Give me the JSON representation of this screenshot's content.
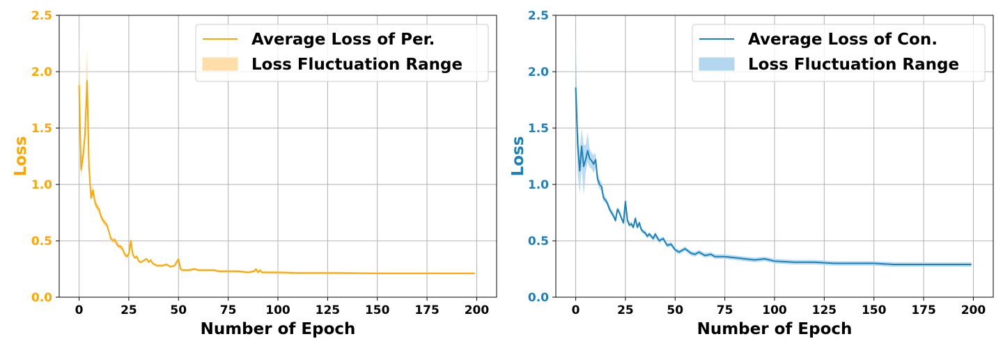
{
  "chart_data": [
    {
      "type": "line",
      "color": "#ffa500",
      "fill_color": "#ffdeaa",
      "xlabel": "Number of Epoch",
      "ylabel": "Loss",
      "xlim": [
        -10,
        210
      ],
      "ylim": [
        0,
        2.5
      ],
      "xticks": [
        "0",
        "25",
        "50",
        "75",
        "100",
        "125",
        "150",
        "175",
        "200"
      ],
      "yticks": [
        "0.0",
        "0.5",
        "1.0",
        "1.5",
        "2.0",
        "2.5"
      ],
      "grid": true,
      "legend_position": "top-right",
      "legend": {
        "line_label": "Average Loss of Per.",
        "band_label": "Loss Fluctuation Range"
      },
      "series": [
        {
          "name": "Average Loss of Per.",
          "x": [
            0,
            1,
            2,
            3,
            4,
            5,
            6,
            7,
            8,
            9,
            10,
            11,
            12,
            13,
            14,
            15,
            16,
            17,
            18,
            19,
            20,
            21,
            22,
            23,
            24,
            25,
            26,
            27,
            28,
            29,
            30,
            31,
            32,
            33,
            34,
            35,
            36,
            37,
            38,
            39,
            40,
            42,
            44,
            46,
            48,
            50,
            51,
            52,
            55,
            58,
            60,
            62,
            65,
            68,
            70,
            75,
            80,
            85,
            88,
            89,
            90,
            91,
            92,
            95,
            98,
            100,
            110,
            120,
            130,
            140,
            150,
            160,
            170,
            180,
            190,
            199
          ],
          "y": [
            1.88,
            1.13,
            1.25,
            1.45,
            1.92,
            1.15,
            0.88,
            0.95,
            0.84,
            0.8,
            0.78,
            0.72,
            0.68,
            0.66,
            0.64,
            0.58,
            0.52,
            0.5,
            0.51,
            0.47,
            0.45,
            0.45,
            0.42,
            0.38,
            0.36,
            0.38,
            0.5,
            0.38,
            0.35,
            0.36,
            0.32,
            0.31,
            0.32,
            0.33,
            0.34,
            0.31,
            0.33,
            0.3,
            0.29,
            0.28,
            0.28,
            0.28,
            0.29,
            0.27,
            0.28,
            0.34,
            0.25,
            0.24,
            0.24,
            0.25,
            0.24,
            0.24,
            0.24,
            0.24,
            0.23,
            0.23,
            0.23,
            0.22,
            0.23,
            0.25,
            0.22,
            0.24,
            0.22,
            0.22,
            0.22,
            0.22,
            0.215,
            0.215,
            0.215,
            0.213,
            0.212,
            0.212,
            0.212,
            0.212,
            0.212,
            0.212
          ],
          "band_lower": [
            1.84,
            1.05,
            1.2,
            1.38,
            1.7,
            1.08,
            0.85,
            0.9,
            0.81,
            0.77,
            0.75,
            0.69,
            0.66,
            0.63,
            0.62,
            0.56,
            0.5,
            0.48,
            0.49,
            0.45,
            0.43,
            0.43,
            0.4,
            0.36,
            0.35,
            0.36,
            0.46,
            0.36,
            0.34,
            0.34,
            0.31,
            0.3,
            0.31,
            0.32,
            0.33,
            0.3,
            0.32,
            0.29,
            0.28,
            0.27,
            0.27,
            0.27,
            0.28,
            0.26,
            0.27,
            0.31,
            0.24,
            0.23,
            0.23,
            0.24,
            0.23,
            0.23,
            0.23,
            0.23,
            0.22,
            0.22,
            0.22,
            0.21,
            0.22,
            0.23,
            0.21,
            0.23,
            0.21,
            0.21,
            0.21,
            0.21,
            0.205,
            0.205,
            0.205,
            0.205,
            0.204,
            0.204,
            0.204,
            0.204,
            0.204,
            0.204
          ],
          "band_upper": [
            2.35,
            1.22,
            1.3,
            1.6,
            2.22,
            1.24,
            0.92,
            1.0,
            0.88,
            0.83,
            0.81,
            0.75,
            0.7,
            0.69,
            0.66,
            0.6,
            0.54,
            0.52,
            0.53,
            0.49,
            0.47,
            0.47,
            0.44,
            0.4,
            0.38,
            0.4,
            0.53,
            0.4,
            0.36,
            0.38,
            0.33,
            0.32,
            0.33,
            0.34,
            0.35,
            0.32,
            0.34,
            0.31,
            0.3,
            0.29,
            0.29,
            0.29,
            0.3,
            0.28,
            0.29,
            0.36,
            0.26,
            0.25,
            0.25,
            0.26,
            0.25,
            0.25,
            0.25,
            0.25,
            0.24,
            0.24,
            0.24,
            0.23,
            0.24,
            0.26,
            0.23,
            0.25,
            0.23,
            0.23,
            0.23,
            0.23,
            0.225,
            0.225,
            0.225,
            0.221,
            0.22,
            0.22,
            0.22,
            0.22,
            0.22,
            0.22
          ]
        }
      ]
    },
    {
      "type": "line",
      "color": "#1a80bb",
      "fill_color": "#b3d7ee",
      "xlabel": "Number of Epoch",
      "ylabel": "Loss",
      "xlim": [
        -10,
        210
      ],
      "ylim": [
        0,
        2.5
      ],
      "xticks": [
        "0",
        "25",
        "50",
        "75",
        "100",
        "125",
        "150",
        "175",
        "200"
      ],
      "yticks": [
        "0.0",
        "0.5",
        "1.0",
        "1.5",
        "2.0",
        "2.5"
      ],
      "grid": true,
      "legend_position": "top-right",
      "legend": {
        "line_label": "Average Loss of Con.",
        "band_label": "Loss Fluctuation Range"
      },
      "series": [
        {
          "name": "Average Loss of Con.",
          "x": [
            0,
            1,
            2,
            3,
            4,
            5,
            6,
            7,
            8,
            9,
            10,
            11,
            12,
            13,
            14,
            15,
            16,
            17,
            18,
            19,
            20,
            21,
            22,
            23,
            24,
            25,
            26,
            27,
            28,
            29,
            30,
            31,
            32,
            33,
            34,
            35,
            36,
            37,
            38,
            39,
            40,
            42,
            44,
            46,
            48,
            50,
            52,
            55,
            58,
            60,
            62,
            65,
            68,
            70,
            75,
            80,
            85,
            90,
            95,
            100,
            110,
            120,
            130,
            140,
            150,
            160,
            170,
            180,
            190,
            199
          ],
          "y": [
            1.86,
            1.35,
            1.12,
            1.34,
            1.16,
            1.22,
            1.3,
            1.23,
            1.21,
            1.18,
            1.22,
            1.05,
            1.0,
            0.98,
            0.88,
            0.86,
            0.83,
            0.78,
            0.75,
            0.72,
            0.68,
            0.78,
            0.75,
            0.7,
            0.66,
            0.85,
            0.68,
            0.64,
            0.65,
            0.62,
            0.7,
            0.62,
            0.66,
            0.6,
            0.58,
            0.57,
            0.54,
            0.56,
            0.54,
            0.52,
            0.56,
            0.5,
            0.52,
            0.46,
            0.47,
            0.42,
            0.4,
            0.43,
            0.39,
            0.38,
            0.4,
            0.37,
            0.38,
            0.36,
            0.36,
            0.35,
            0.34,
            0.33,
            0.34,
            0.32,
            0.31,
            0.31,
            0.3,
            0.3,
            0.3,
            0.29,
            0.29,
            0.29,
            0.29,
            0.29
          ],
          "band_lower": [
            1.8,
            1.1,
            0.92,
            1.15,
            0.9,
            1.1,
            1.2,
            1.15,
            1.14,
            1.1,
            1.15,
            1.0,
            0.96,
            0.94,
            0.85,
            0.84,
            0.8,
            0.76,
            0.73,
            0.7,
            0.66,
            0.75,
            0.73,
            0.68,
            0.64,
            0.8,
            0.66,
            0.62,
            0.63,
            0.6,
            0.67,
            0.6,
            0.63,
            0.58,
            0.56,
            0.55,
            0.52,
            0.54,
            0.52,
            0.5,
            0.53,
            0.48,
            0.5,
            0.44,
            0.45,
            0.4,
            0.38,
            0.41,
            0.37,
            0.36,
            0.38,
            0.35,
            0.36,
            0.34,
            0.34,
            0.33,
            0.32,
            0.31,
            0.32,
            0.3,
            0.29,
            0.29,
            0.28,
            0.28,
            0.28,
            0.27,
            0.27,
            0.27,
            0.27,
            0.27
          ],
          "band_upper": [
            2.33,
            1.55,
            1.3,
            1.5,
            1.35,
            1.35,
            1.46,
            1.32,
            1.28,
            1.26,
            1.28,
            1.1,
            1.04,
            1.02,
            0.92,
            0.89,
            0.86,
            0.81,
            0.78,
            0.75,
            0.71,
            0.8,
            0.78,
            0.72,
            0.68,
            0.87,
            0.7,
            0.67,
            0.67,
            0.64,
            0.72,
            0.64,
            0.68,
            0.62,
            0.6,
            0.59,
            0.56,
            0.58,
            0.56,
            0.54,
            0.58,
            0.52,
            0.54,
            0.48,
            0.49,
            0.44,
            0.42,
            0.45,
            0.41,
            0.4,
            0.42,
            0.39,
            0.4,
            0.38,
            0.38,
            0.37,
            0.36,
            0.35,
            0.36,
            0.34,
            0.33,
            0.33,
            0.32,
            0.32,
            0.32,
            0.31,
            0.31,
            0.31,
            0.31,
            0.31
          ]
        }
      ]
    }
  ]
}
